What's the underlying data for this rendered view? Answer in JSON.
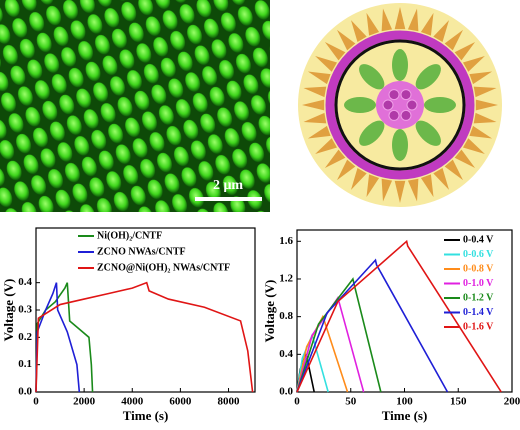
{
  "figure": {
    "scale_bar": "2 μm"
  },
  "chart_data": [
    {
      "type": "line",
      "xlabel": "Time (s)",
      "ylabel": "Voltage (V)",
      "xlim": [
        0,
        9100
      ],
      "ylim": [
        0,
        0.6
      ],
      "xticks": [
        0,
        2000,
        4000,
        6000,
        8000
      ],
      "yticks": [
        {
          "value": 0,
          "label": "0.0"
        },
        {
          "value": 0.1,
          "label": "0.1"
        },
        {
          "value": 0.2,
          "label": "0.2"
        },
        {
          "value": 0.3,
          "label": "0.3"
        },
        {
          "value": 0.4,
          "label": "0.4"
        }
      ],
      "legend": "upper left",
      "series": [
        {
          "name": "Ni(OH)₂/CNTF",
          "color": "#1a8a1a",
          "x": [
            0,
            50,
            400,
            800,
            1200,
            1300,
            1400,
            1800,
            2200,
            2300,
            2350
          ],
          "values": [
            0,
            0.25,
            0.3,
            0.33,
            0.38,
            0.4,
            0.26,
            0.23,
            0.2,
            0.1,
            0
          ]
        },
        {
          "name": "ZCNO NWAs/CNTF",
          "color": "#1f1fd6",
          "x": [
            0,
            50,
            400,
            700,
            850,
            900,
            1300,
            1700,
            1800
          ],
          "values": [
            0,
            0.22,
            0.3,
            0.36,
            0.4,
            0.3,
            0.22,
            0.1,
            0
          ]
        },
        {
          "name": "ZCNO@Ni(OH)₂ NWAs/CNTF",
          "color": "#e01515",
          "x": [
            0,
            100,
            1000,
            2000,
            3000,
            4000,
            4600,
            4700,
            5500,
            7000,
            8500,
            8800,
            9000
          ],
          "values": [
            0,
            0.27,
            0.32,
            0.34,
            0.36,
            0.38,
            0.4,
            0.37,
            0.34,
            0.31,
            0.26,
            0.15,
            0
          ]
        }
      ]
    },
    {
      "type": "line",
      "xlabel": "Time (s)",
      "ylabel": "Voltage (V)",
      "xlim": [
        0,
        200
      ],
      "ylim": [
        0,
        1.72
      ],
      "xticks": [
        0,
        50,
        100,
        150,
        200
      ],
      "yticks": [
        {
          "value": 0,
          "label": "0.0"
        },
        {
          "value": 0.4,
          "label": "0.4"
        },
        {
          "value": 0.8,
          "label": "0.8"
        },
        {
          "value": 1.2,
          "label": "1.2"
        },
        {
          "value": 1.6,
          "label": "1.6"
        }
      ],
      "legend": "upper right",
      "series": [
        {
          "name": "0-0.4 V",
          "color": "#000000",
          "x": [
            0,
            3,
            8,
            9,
            16
          ],
          "values": [
            0,
            0.24,
            0.4,
            0.38,
            0
          ]
        },
        {
          "name": "0-0.6 V",
          "color": "#33e0e0",
          "x": [
            0,
            5,
            14,
            15,
            29
          ],
          "values": [
            0,
            0.36,
            0.6,
            0.57,
            0
          ]
        },
        {
          "name": "0-0.8 V",
          "color": "#ff8c1a",
          "x": [
            0,
            9,
            24,
            25,
            47
          ],
          "values": [
            0,
            0.48,
            0.8,
            0.77,
            0
          ]
        },
        {
          "name": "0-1.0 V",
          "color": "#e020e0",
          "x": [
            0,
            14,
            38,
            39,
            62
          ],
          "values": [
            0,
            0.6,
            1.0,
            0.96,
            0
          ]
        },
        {
          "name": "0-1.2 V",
          "color": "#1a8a1a",
          "x": [
            0,
            20,
            52,
            53,
            78
          ],
          "values": [
            0,
            0.72,
            1.2,
            1.15,
            0
          ]
        },
        {
          "name": "0-1.4 V",
          "color": "#1f1fd6",
          "x": [
            0,
            28,
            73,
            74,
            140
          ],
          "values": [
            0,
            0.84,
            1.4,
            1.35,
            0
          ]
        },
        {
          "name": "0-1.6 V",
          "color": "#e01515",
          "x": [
            0,
            38,
            102,
            103,
            190
          ],
          "values": [
            0,
            0.96,
            1.6,
            1.55,
            0
          ]
        }
      ]
    }
  ]
}
